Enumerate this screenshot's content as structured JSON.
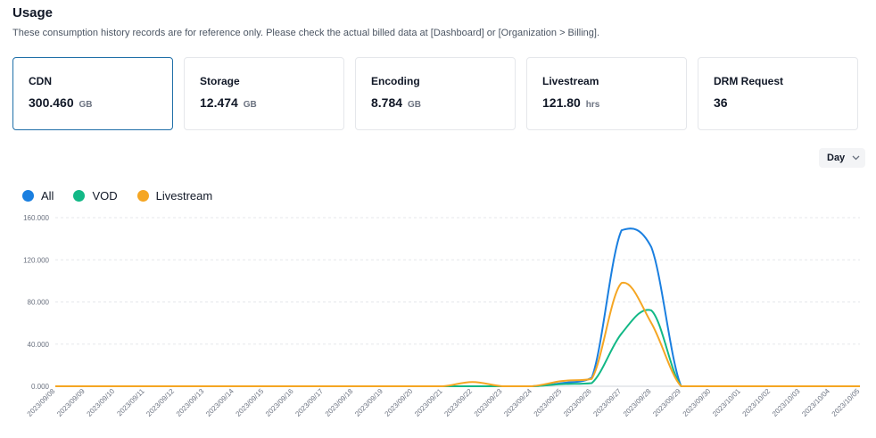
{
  "header": {
    "title": "Usage",
    "subtitle": "These consumption history records are for reference only. Please check the actual billed data at [Dashboard] or [Organization > Billing]."
  },
  "cards": [
    {
      "label": "CDN",
      "value": "300.460",
      "unit": "GB"
    },
    {
      "label": "Storage",
      "value": "12.474",
      "unit": "GB"
    },
    {
      "label": "Encoding",
      "value": "8.784",
      "unit": "GB"
    },
    {
      "label": "Livestream",
      "value": "121.80",
      "unit": "hrs"
    },
    {
      "label": "DRM Request",
      "value": "36",
      "unit": ""
    }
  ],
  "selected_card": "CDN",
  "period_select": {
    "value": "Day"
  },
  "icons": {
    "dropdown": "chevron-down-icon"
  },
  "colors": {
    "all": "#1a7fe0",
    "vod": "#12b886",
    "livestream": "#f5a623",
    "selected_border": "#1f6fa8"
  },
  "chart_data": {
    "type": "line",
    "legend_position": "top-left",
    "grid": true,
    "ylim": [
      0,
      160
    ],
    "y_ticks": [
      "0.000",
      "40.000",
      "80.000",
      "120.000",
      "160.000"
    ],
    "y_tick_values": [
      0,
      40,
      80,
      120,
      160
    ],
    "categories": [
      "2023/09/08",
      "2023/09/09",
      "2023/09/10",
      "2023/09/11",
      "2023/09/12",
      "2023/09/13",
      "2023/09/14",
      "2023/09/15",
      "2023/09/16",
      "2023/09/17",
      "2023/09/18",
      "2023/09/19",
      "2023/09/20",
      "2023/09/21",
      "2023/09/22",
      "2023/09/23",
      "2023/09/24",
      "2023/09/25",
      "2023/09/26",
      "2023/09/27",
      "2023/09/28",
      "2023/09/29",
      "2023/09/30",
      "2023/10/01",
      "2023/10/02",
      "2023/10/03",
      "2023/10/04",
      "2023/10/05"
    ],
    "series": [
      {
        "name": "All",
        "color": "#1a7fe0",
        "values": [
          0,
          0,
          0,
          0,
          0,
          0,
          0,
          0,
          0,
          0,
          0,
          0,
          0,
          0,
          0,
          0,
          0,
          3,
          8,
          148,
          132,
          0,
          0,
          0,
          0,
          0,
          0,
          0
        ]
      },
      {
        "name": "VOD",
        "color": "#12b886",
        "values": [
          0,
          0,
          0,
          0,
          0,
          0,
          0,
          0,
          0,
          0,
          0,
          0,
          0,
          0,
          0,
          0,
          0,
          2,
          3,
          50,
          72,
          0,
          0,
          0,
          0,
          0,
          0,
          0
        ]
      },
      {
        "name": "Livestream",
        "color": "#f5a623",
        "values": [
          0,
          0,
          0,
          0,
          0,
          0,
          0,
          0,
          0,
          0,
          0,
          0,
          0,
          0,
          4,
          0,
          0,
          5,
          7,
          98,
          60,
          0,
          0,
          0,
          0,
          0,
          0,
          0
        ]
      }
    ]
  }
}
